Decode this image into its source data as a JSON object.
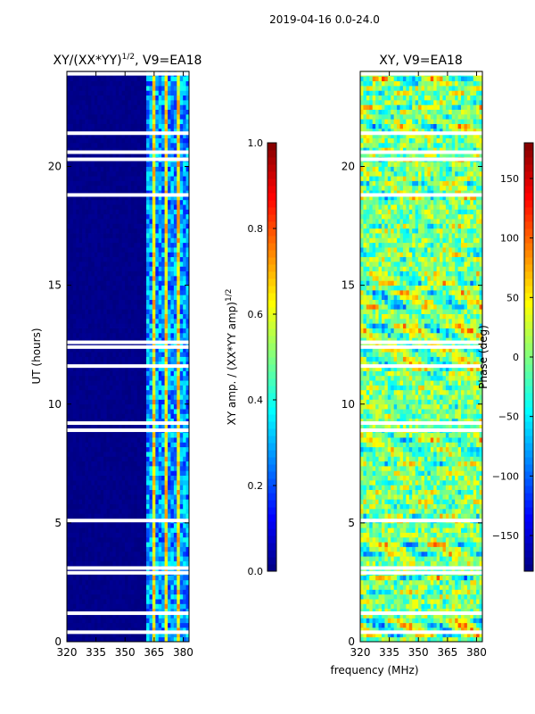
{
  "suptitle": "2019-04-16 0.0-24.0",
  "chart_data": [
    {
      "type": "heatmap",
      "title": "XY/(XX*YY)",
      "title_sup": "1/2",
      "title_suffix": ", V9=EA18",
      "xlabel": "",
      "ylabel": "UT (hours)",
      "xlim": [
        320,
        383
      ],
      "ylim": [
        0,
        24
      ],
      "xticks": [
        320,
        335,
        350,
        365,
        380
      ],
      "yticks": [
        0,
        5,
        10,
        15,
        20
      ],
      "colorbar": {
        "label": "XY amp. / (XX*YY amp)",
        "label_sup": "1/2",
        "range": [
          0.0,
          1.0
        ],
        "ticks": [
          0.0,
          0.2,
          0.4,
          0.6,
          0.8,
          1.0
        ],
        "tick_labels": [
          "0.0",
          "0.2",
          "0.4",
          "0.6",
          "0.8",
          "1.0"
        ],
        "colormap": "jet"
      },
      "low_value_band_mhz": [
        320,
        361
      ],
      "active_band_mhz": [
        361,
        383
      ]
    },
    {
      "type": "heatmap",
      "title": "XY, V9=EA18",
      "xlabel": "frequency (MHz)",
      "ylabel": "",
      "xlim": [
        320,
        383
      ],
      "ylim": [
        0,
        24
      ],
      "xticks": [
        320,
        335,
        350,
        365,
        380
      ],
      "yticks": [
        0,
        5,
        10,
        15,
        20
      ],
      "colorbar": {
        "label": "Phase (deg)",
        "range": [
          -180,
          180
        ],
        "ticks": [
          -150,
          -100,
          -50,
          0,
          50,
          100,
          150
        ],
        "tick_labels": [
          "−150",
          "−100",
          "−50",
          "0",
          "50",
          "100",
          "150"
        ],
        "colormap": "jet"
      }
    }
  ],
  "data_gaps_ut_hours": [
    0.4,
    1.2,
    2.9,
    3.1,
    5.1,
    8.9,
    9.2,
    11.6,
    12.4,
    12.6,
    18.8,
    20.3,
    20.6,
    21.4,
    23.9
  ]
}
